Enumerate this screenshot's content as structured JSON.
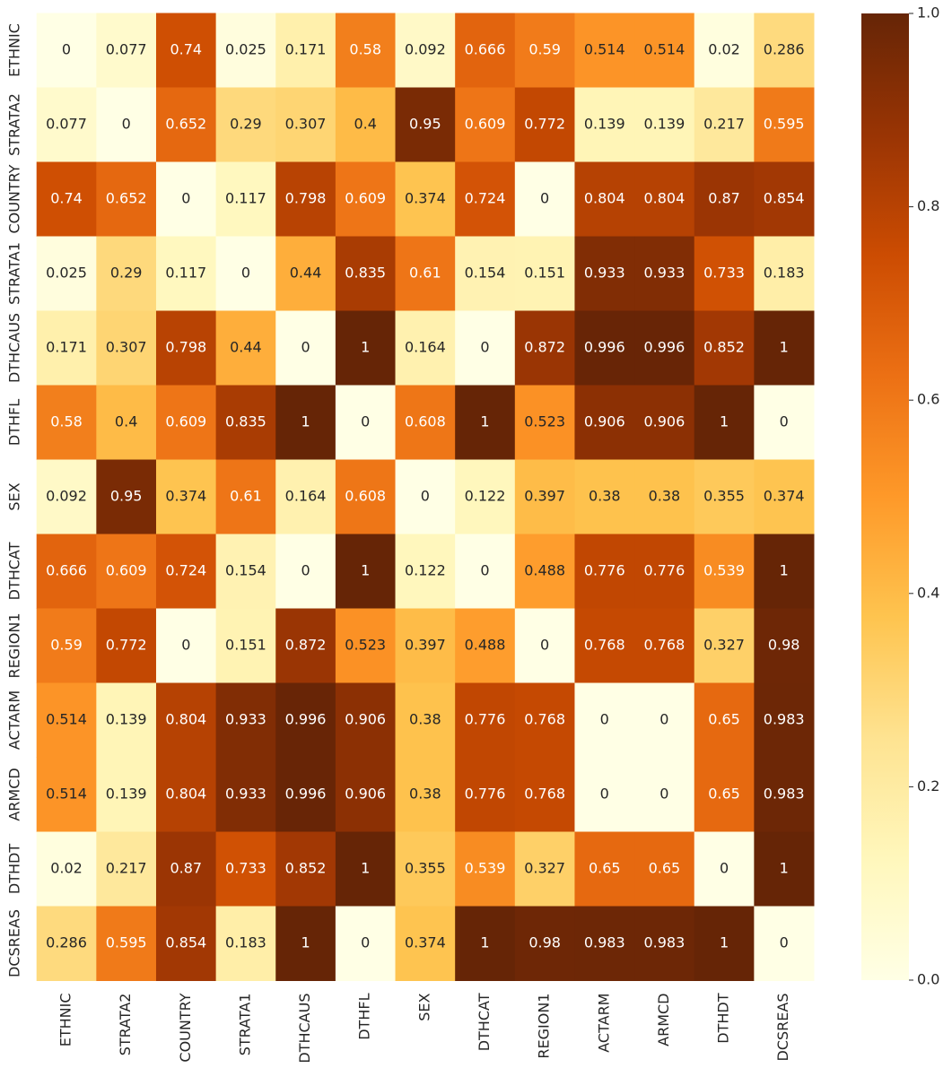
{
  "chart_data": {
    "type": "heatmap",
    "x": [
      "ETHNIC",
      "STRATA2",
      "COUNTRY",
      "STRATA1",
      "DTHCAUS",
      "DTHFL",
      "SEX",
      "DTHCAT",
      "REGION1",
      "ACTARM",
      "ARMCD",
      "DTHDT",
      "DCSREAS"
    ],
    "y": [
      "ETHNIC",
      "STRATA2",
      "COUNTRY",
      "STRATA1",
      "DTHCAUS",
      "DTHFL",
      "SEX",
      "DTHCAT",
      "REGION1",
      "ACTARM",
      "ARMCD",
      "DTHDT",
      "DCSREAS"
    ],
    "values": [
      [
        0,
        0.077,
        0.74,
        0.025,
        0.171,
        0.58,
        0.092,
        0.666,
        0.59,
        0.514,
        0.514,
        0.02,
        0.286
      ],
      [
        0.077,
        0,
        0.652,
        0.29,
        0.307,
        0.4,
        0.95,
        0.609,
        0.772,
        0.139,
        0.139,
        0.217,
        0.595
      ],
      [
        0.74,
        0.652,
        0,
        0.117,
        0.798,
        0.609,
        0.374,
        0.724,
        0,
        0.804,
        0.804,
        0.87,
        0.854
      ],
      [
        0.025,
        0.29,
        0.117,
        0,
        0.44,
        0.835,
        0.61,
        0.154,
        0.151,
        0.933,
        0.933,
        0.733,
        0.183
      ],
      [
        0.171,
        0.307,
        0.798,
        0.44,
        0,
        1,
        0.164,
        0,
        0.872,
        0.996,
        0.996,
        0.852,
        1
      ],
      [
        0.58,
        0.4,
        0.609,
        0.835,
        1,
        0,
        0.608,
        1,
        0.523,
        0.906,
        0.906,
        1,
        0
      ],
      [
        0.092,
        0.95,
        0.374,
        0.61,
        0.164,
        0.608,
        0,
        0.122,
        0.397,
        0.38,
        0.38,
        0.355,
        0.374
      ],
      [
        0.666,
        0.609,
        0.724,
        0.154,
        0,
        1,
        0.122,
        0,
        0.488,
        0.776,
        0.776,
        0.539,
        1
      ],
      [
        0.59,
        0.772,
        0,
        0.151,
        0.872,
        0.523,
        0.397,
        0.488,
        0,
        0.768,
        0.768,
        0.327,
        0.98
      ],
      [
        0.514,
        0.139,
        0.804,
        0.933,
        0.996,
        0.906,
        0.38,
        0.776,
        0.768,
        0,
        0,
        0.65,
        0.983
      ],
      [
        0.514,
        0.139,
        0.804,
        0.933,
        0.996,
        0.906,
        0.38,
        0.776,
        0.768,
        0,
        0,
        0.65,
        0.983
      ],
      [
        0.02,
        0.217,
        0.87,
        0.733,
        0.852,
        1,
        0.355,
        0.539,
        0.327,
        0.65,
        0.65,
        0,
        1
      ],
      [
        0.286,
        0.595,
        0.854,
        0.183,
        1,
        0,
        0.374,
        1,
        0.98,
        0.983,
        0.983,
        1,
        0
      ]
    ],
    "colorscale": [
      "#ffffe5",
      "#fff7bc",
      "#fee391",
      "#fec44f",
      "#fe9929",
      "#ec7014",
      "#cc4c02",
      "#993404",
      "#662506"
    ],
    "clim": [
      0,
      1
    ],
    "cticks": [
      {
        "value": 0,
        "label": "0.0"
      },
      0.2,
      0.4,
      0.6,
      0.8,
      {
        "value": 1,
        "label": "1.0"
      }
    ]
  }
}
